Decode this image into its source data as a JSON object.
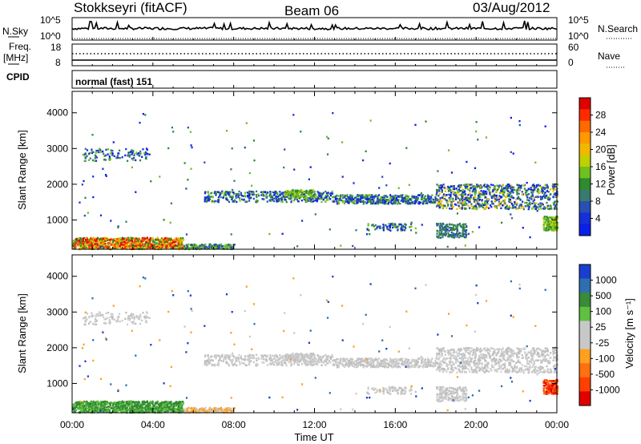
{
  "header": {
    "station": "Stokkseyri (fitACF)",
    "beam": "Beam 06",
    "date": "03/Aug/2012"
  },
  "nsky_panel": {
    "left_label": "N.Sky",
    "right_label": "N.Search",
    "left_ticks": [
      "10^5",
      "10^0"
    ],
    "right_ticks": [
      "10^5",
      "10^0"
    ]
  },
  "freq_panel": {
    "left_label_1": "Freq.",
    "left_label_2": "[MHz]",
    "right_label": "Nave",
    "left_ticks": [
      "18",
      "8"
    ],
    "right_ticks": [
      "60",
      "0"
    ]
  },
  "cpid_panel": {
    "label": "CPID",
    "mode_text": "normal (fast) 151"
  },
  "chart_data": [
    {
      "type": "heatmap",
      "title": "",
      "xlabel": "",
      "ylabel": "Slant Range [km]",
      "xlim": [
        "00:00",
        "00:00"
      ],
      "ylim": [
        180,
        4600
      ],
      "y_ticks": [
        "4000",
        "3000",
        "2000",
        "1000"
      ],
      "colorbar": {
        "label": "Power [dB]",
        "ticks": [
          "28",
          "24",
          "20",
          "16",
          "12",
          "8",
          "4"
        ],
        "colors": [
          "#e00000",
          "#ff2a00",
          "#ff6a00",
          "#ff9900",
          "#f2b800",
          "#c0d000",
          "#70c020",
          "#2e8b2e",
          "#3a7a6e",
          "#2a4fb0",
          "#1530d8",
          "#0a1fe8"
        ]
      }
    },
    {
      "type": "heatmap",
      "title": "",
      "xlabel": "Time UT",
      "ylabel": "Slant Range [km]",
      "xlim": [
        "00:00",
        "00:00"
      ],
      "ylim": [
        180,
        4600
      ],
      "x_ticks": [
        "00:00",
        "04:00",
        "08:00",
        "12:00",
        "16:00",
        "20:00",
        "00:00"
      ],
      "y_ticks": [
        "4000",
        "3000",
        "2000",
        "1000"
      ],
      "colorbar": {
        "label": "Velocity [m s⁻¹]",
        "ticks": [
          "1000",
          "500",
          "100",
          "25",
          "-25",
          "-100",
          "-500",
          "-1000"
        ],
        "colors": [
          "#1a3fd0",
          "#2f6fb0",
          "#3a8a3a",
          "#60c040",
          "#c8c8c8",
          "#c8c8c8",
          "#ffa020",
          "#ff7010",
          "#ff4000",
          "#e00000"
        ]
      }
    }
  ]
}
